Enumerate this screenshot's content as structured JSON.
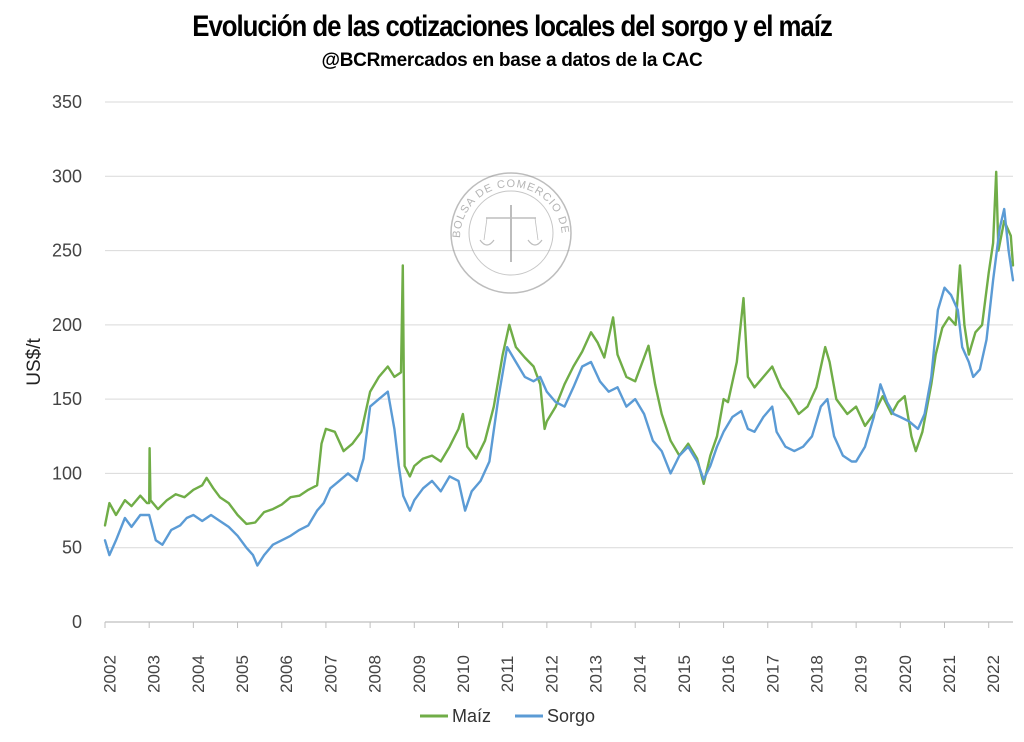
{
  "title": "Evolución de las cotizaciones locales del sorgo y el maíz",
  "subtitle": "@BCRmercados en base a datos de la CAC",
  "watermark": {
    "text": "BOLSA DE COMERCIO DE ROSARIO"
  },
  "chart_data": {
    "type": "line",
    "title": "Evolución de las cotizaciones locales del sorgo y el maíz",
    "subtitle": "@BCRmercados en base a datos de la CAC",
    "xlabel": "",
    "ylabel": "US$/t",
    "ylim": [
      0,
      350
    ],
    "yticks": [
      0,
      50,
      100,
      150,
      200,
      250,
      300,
      350
    ],
    "xlim": [
      2002.0,
      2022.55
    ],
    "xticks": [
      "2002",
      "2003",
      "2004",
      "2005",
      "2006",
      "2007",
      "2008",
      "2009",
      "2010",
      "2011",
      "2012",
      "2013",
      "2014",
      "2015",
      "2016",
      "2017",
      "2018",
      "2019",
      "2020",
      "2021",
      "2022"
    ],
    "grid": "horizontal",
    "legend": "bottom",
    "series": [
      {
        "name": "Maíz",
        "color": "#70ad47",
        "points": [
          [
            2002.0,
            65
          ],
          [
            2002.1,
            80
          ],
          [
            2002.25,
            72
          ],
          [
            2002.45,
            82
          ],
          [
            2002.6,
            78
          ],
          [
            2002.8,
            85
          ],
          [
            2002.95,
            80
          ],
          [
            2003.0,
            80
          ],
          [
            2003.01,
            117
          ],
          [
            2003.03,
            82
          ],
          [
            2003.2,
            76
          ],
          [
            2003.4,
            82
          ],
          [
            2003.6,
            86
          ],
          [
            2003.8,
            84
          ],
          [
            2004.0,
            89
          ],
          [
            2004.2,
            92
          ],
          [
            2004.3,
            97
          ],
          [
            2004.45,
            90
          ],
          [
            2004.6,
            84
          ],
          [
            2004.8,
            80
          ],
          [
            2005.0,
            72
          ],
          [
            2005.2,
            66
          ],
          [
            2005.4,
            67
          ],
          [
            2005.6,
            74
          ],
          [
            2005.8,
            76
          ],
          [
            2006.0,
            79
          ],
          [
            2006.2,
            84
          ],
          [
            2006.4,
            85
          ],
          [
            2006.6,
            89
          ],
          [
            2006.8,
            92
          ],
          [
            2006.9,
            120
          ],
          [
            2007.0,
            130
          ],
          [
            2007.2,
            128
          ],
          [
            2007.4,
            115
          ],
          [
            2007.6,
            120
          ],
          [
            2007.8,
            128
          ],
          [
            2008.0,
            155
          ],
          [
            2008.2,
            165
          ],
          [
            2008.4,
            172
          ],
          [
            2008.55,
            165
          ],
          [
            2008.7,
            168
          ],
          [
            2008.74,
            240
          ],
          [
            2008.78,
            105
          ],
          [
            2008.9,
            98
          ],
          [
            2009.0,
            105
          ],
          [
            2009.2,
            110
          ],
          [
            2009.4,
            112
          ],
          [
            2009.6,
            108
          ],
          [
            2009.8,
            118
          ],
          [
            2010.0,
            130
          ],
          [
            2010.1,
            140
          ],
          [
            2010.2,
            118
          ],
          [
            2010.4,
            110
          ],
          [
            2010.6,
            122
          ],
          [
            2010.8,
            145
          ],
          [
            2011.0,
            180
          ],
          [
            2011.15,
            200
          ],
          [
            2011.3,
            185
          ],
          [
            2011.5,
            178
          ],
          [
            2011.7,
            172
          ],
          [
            2011.85,
            160
          ],
          [
            2011.95,
            130
          ],
          [
            2012.0,
            135
          ],
          [
            2012.2,
            145
          ],
          [
            2012.4,
            160
          ],
          [
            2012.6,
            172
          ],
          [
            2012.8,
            182
          ],
          [
            2013.0,
            195
          ],
          [
            2013.15,
            188
          ],
          [
            2013.3,
            178
          ],
          [
            2013.5,
            205
          ],
          [
            2013.6,
            180
          ],
          [
            2013.8,
            165
          ],
          [
            2014.0,
            162
          ],
          [
            2014.2,
            178
          ],
          [
            2014.3,
            186
          ],
          [
            2014.45,
            160
          ],
          [
            2014.6,
            140
          ],
          [
            2014.8,
            122
          ],
          [
            2015.0,
            112
          ],
          [
            2015.2,
            120
          ],
          [
            2015.4,
            110
          ],
          [
            2015.55,
            93
          ],
          [
            2015.7,
            112
          ],
          [
            2015.85,
            125
          ],
          [
            2016.0,
            150
          ],
          [
            2016.1,
            148
          ],
          [
            2016.3,
            175
          ],
          [
            2016.45,
            218
          ],
          [
            2016.55,
            165
          ],
          [
            2016.7,
            158
          ],
          [
            2016.9,
            165
          ],
          [
            2017.1,
            172
          ],
          [
            2017.3,
            158
          ],
          [
            2017.5,
            150
          ],
          [
            2017.7,
            140
          ],
          [
            2017.9,
            145
          ],
          [
            2018.1,
            158
          ],
          [
            2018.3,
            185
          ],
          [
            2018.4,
            175
          ],
          [
            2018.55,
            150
          ],
          [
            2018.8,
            140
          ],
          [
            2019.0,
            145
          ],
          [
            2019.2,
            132
          ],
          [
            2019.4,
            140
          ],
          [
            2019.6,
            152
          ],
          [
            2019.8,
            140
          ],
          [
            2019.95,
            148
          ],
          [
            2020.1,
            152
          ],
          [
            2020.25,
            125
          ],
          [
            2020.35,
            115
          ],
          [
            2020.5,
            128
          ],
          [
            2020.7,
            160
          ],
          [
            2020.8,
            180
          ],
          [
            2020.95,
            198
          ],
          [
            2021.1,
            205
          ],
          [
            2021.25,
            200
          ],
          [
            2021.35,
            240
          ],
          [
            2021.45,
            200
          ],
          [
            2021.55,
            180
          ],
          [
            2021.7,
            195
          ],
          [
            2021.85,
            200
          ],
          [
            2022.0,
            235
          ],
          [
            2022.1,
            255
          ],
          [
            2022.17,
            303
          ],
          [
            2022.22,
            250
          ],
          [
            2022.35,
            270
          ],
          [
            2022.5,
            260
          ],
          [
            2022.55,
            240
          ]
        ]
      },
      {
        "name": "Sorgo",
        "color": "#5b9bd5",
        "points": [
          [
            2002.0,
            55
          ],
          [
            2002.1,
            45
          ],
          [
            2002.25,
            55
          ],
          [
            2002.45,
            70
          ],
          [
            2002.6,
            64
          ],
          [
            2002.8,
            72
          ],
          [
            2003.0,
            72
          ],
          [
            2003.15,
            55
          ],
          [
            2003.3,
            52
          ],
          [
            2003.5,
            62
          ],
          [
            2003.7,
            65
          ],
          [
            2003.85,
            70
          ],
          [
            2004.0,
            72
          ],
          [
            2004.2,
            68
          ],
          [
            2004.4,
            72
          ],
          [
            2004.6,
            68
          ],
          [
            2004.8,
            64
          ],
          [
            2005.0,
            58
          ],
          [
            2005.2,
            50
          ],
          [
            2005.35,
            45
          ],
          [
            2005.45,
            38
          ],
          [
            2005.6,
            45
          ],
          [
            2005.8,
            52
          ],
          [
            2006.0,
            55
          ],
          [
            2006.2,
            58
          ],
          [
            2006.4,
            62
          ],
          [
            2006.6,
            65
          ],
          [
            2006.8,
            75
          ],
          [
            2006.95,
            80
          ],
          [
            2007.1,
            90
          ],
          [
            2007.3,
            95
          ],
          [
            2007.5,
            100
          ],
          [
            2007.7,
            95
          ],
          [
            2007.85,
            110
          ],
          [
            2008.0,
            145
          ],
          [
            2008.2,
            150
          ],
          [
            2008.4,
            155
          ],
          [
            2008.55,
            130
          ],
          [
            2008.65,
            105
          ],
          [
            2008.75,
            85
          ],
          [
            2008.9,
            75
          ],
          [
            2009.0,
            82
          ],
          [
            2009.2,
            90
          ],
          [
            2009.4,
            95
          ],
          [
            2009.6,
            88
          ],
          [
            2009.8,
            98
          ],
          [
            2010.0,
            95
          ],
          [
            2010.15,
            75
          ],
          [
            2010.3,
            88
          ],
          [
            2010.5,
            95
          ],
          [
            2010.7,
            108
          ],
          [
            2010.9,
            150
          ],
          [
            2011.1,
            185
          ],
          [
            2011.3,
            175
          ],
          [
            2011.5,
            165
          ],
          [
            2011.7,
            162
          ],
          [
            2011.85,
            165
          ],
          [
            2012.0,
            155
          ],
          [
            2012.2,
            148
          ],
          [
            2012.4,
            145
          ],
          [
            2012.6,
            158
          ],
          [
            2012.8,
            172
          ],
          [
            2013.0,
            175
          ],
          [
            2013.2,
            162
          ],
          [
            2013.4,
            155
          ],
          [
            2013.6,
            158
          ],
          [
            2013.8,
            145
          ],
          [
            2014.0,
            150
          ],
          [
            2014.2,
            140
          ],
          [
            2014.4,
            122
          ],
          [
            2014.6,
            115
          ],
          [
            2014.8,
            100
          ],
          [
            2015.0,
            112
          ],
          [
            2015.2,
            118
          ],
          [
            2015.4,
            108
          ],
          [
            2015.55,
            96
          ],
          [
            2015.7,
            105
          ],
          [
            2015.85,
            118
          ],
          [
            2016.0,
            128
          ],
          [
            2016.2,
            138
          ],
          [
            2016.4,
            142
          ],
          [
            2016.55,
            130
          ],
          [
            2016.7,
            128
          ],
          [
            2016.9,
            138
          ],
          [
            2017.1,
            145
          ],
          [
            2017.2,
            128
          ],
          [
            2017.4,
            118
          ],
          [
            2017.6,
            115
          ],
          [
            2017.8,
            118
          ],
          [
            2018.0,
            125
          ],
          [
            2018.2,
            145
          ],
          [
            2018.35,
            150
          ],
          [
            2018.5,
            125
          ],
          [
            2018.7,
            112
          ],
          [
            2018.9,
            108
          ],
          [
            2019.0,
            108
          ],
          [
            2019.2,
            118
          ],
          [
            2019.4,
            138
          ],
          [
            2019.55,
            160
          ],
          [
            2019.7,
            148
          ],
          [
            2019.85,
            140
          ],
          [
            2020.0,
            138
          ],
          [
            2020.2,
            135
          ],
          [
            2020.4,
            130
          ],
          [
            2020.55,
            140
          ],
          [
            2020.7,
            165
          ],
          [
            2020.85,
            210
          ],
          [
            2021.0,
            225
          ],
          [
            2021.15,
            220
          ],
          [
            2021.3,
            210
          ],
          [
            2021.4,
            185
          ],
          [
            2021.55,
            175
          ],
          [
            2021.65,
            165
          ],
          [
            2021.8,
            170
          ],
          [
            2021.95,
            190
          ],
          [
            2022.1,
            230
          ],
          [
            2022.25,
            265
          ],
          [
            2022.35,
            278
          ],
          [
            2022.45,
            250
          ],
          [
            2022.55,
            230
          ]
        ]
      }
    ]
  }
}
